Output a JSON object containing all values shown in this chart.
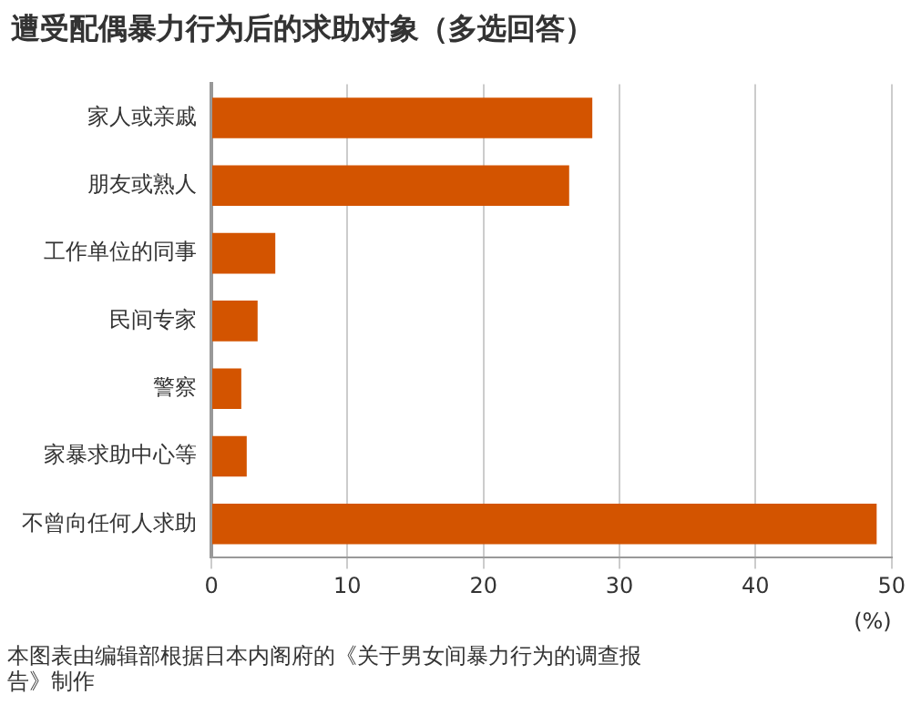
{
  "chart_data": {
    "type": "bar",
    "orientation": "horizontal",
    "title": "遭受配偶暴力行为后的求助对象（多选回答）",
    "categories": [
      "家人或亲戚",
      "朋友或熟人",
      "工作单位的同事",
      "民间专家",
      "警察",
      "家暴求助中心等",
      "不曾向任何人求助"
    ],
    "values": [
      28.0,
      26.3,
      4.7,
      3.4,
      2.2,
      2.6,
      48.9
    ],
    "color": "#d35400",
    "xlim": [
      0,
      50
    ],
    "xticks": [
      0,
      10,
      20,
      30,
      40,
      50
    ],
    "xlabel": "(%)",
    "grid": "x",
    "legend": false,
    "annotations": [
      "本图表由编辑部根据日本内阁府的《关于男女间暴力行为的调查报告》制作"
    ]
  }
}
